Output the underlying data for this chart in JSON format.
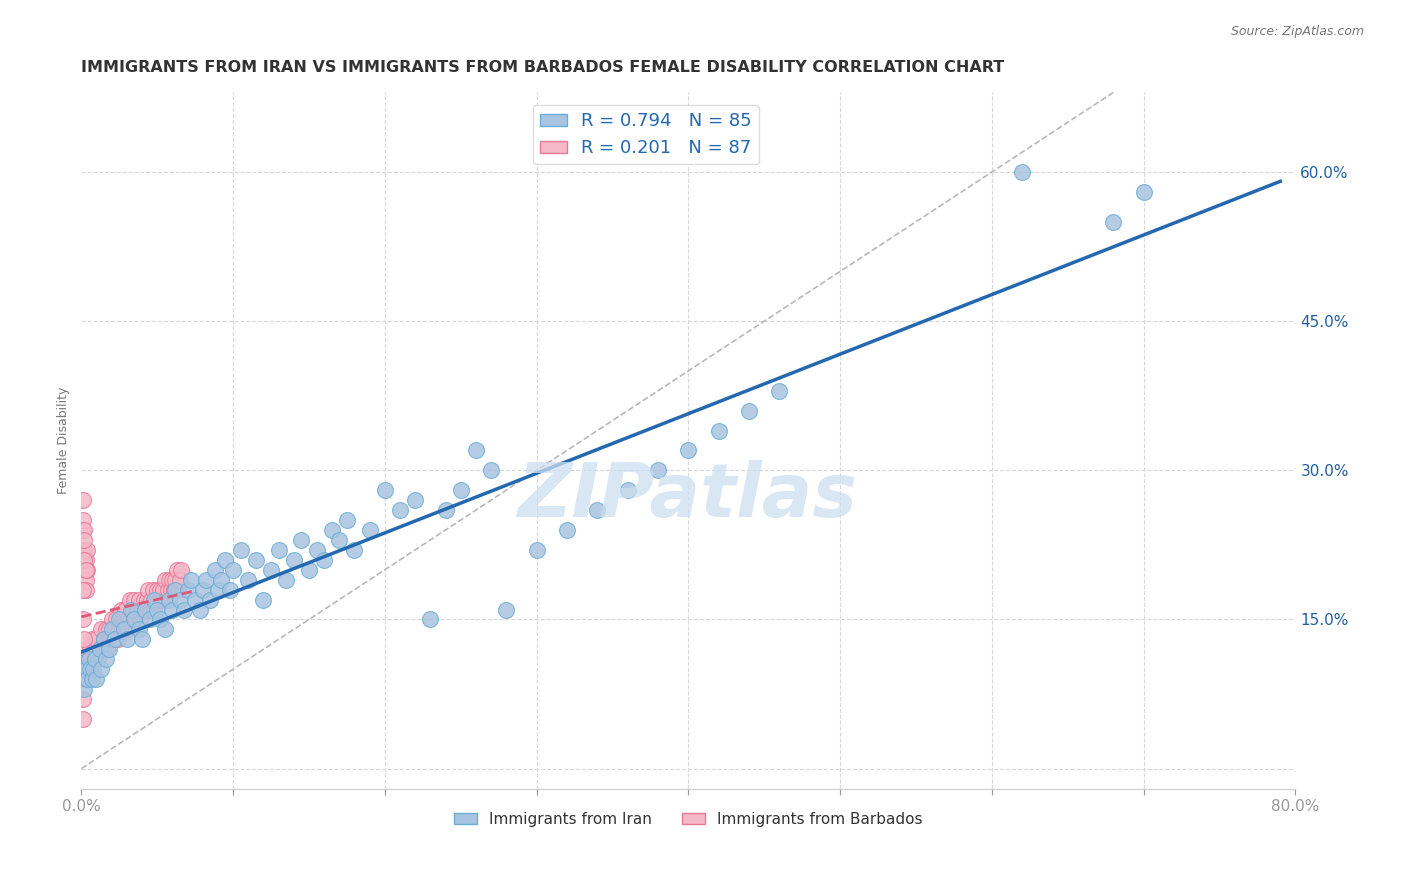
{
  "title": "IMMIGRANTS FROM IRAN VS IMMIGRANTS FROM BARBADOS FEMALE DISABILITY CORRELATION CHART",
  "source": "Source: ZipAtlas.com",
  "ylabel": "Female Disability",
  "xlim": [
    0,
    0.8
  ],
  "ylim": [
    -0.02,
    0.68
  ],
  "iran_color": "#a8c4e0",
  "iran_edge_color": "#6aaed6",
  "iran_line_color": "#2468b0",
  "barbados_color": "#f4b8c8",
  "barbados_edge_color": "#e87898",
  "barbados_line_color": "#e05878",
  "iran_R": 0.794,
  "iran_N": 85,
  "barbados_R": 0.201,
  "barbados_N": 87,
  "legend_R_color": "#2468b0",
  "watermark": "ZIPatlas",
  "iran_x": [
    0.002,
    0.003,
    0.004,
    0.005,
    0.006,
    0.007,
    0.008,
    0.009,
    0.01,
    0.012,
    0.013,
    0.015,
    0.016,
    0.018,
    0.02,
    0.022,
    0.025,
    0.028,
    0.03,
    0.033,
    0.035,
    0.038,
    0.04,
    0.042,
    0.045,
    0.048,
    0.05,
    0.052,
    0.055,
    0.058,
    0.06,
    0.062,
    0.065,
    0.068,
    0.07,
    0.072,
    0.075,
    0.078,
    0.08,
    0.082,
    0.085,
    0.088,
    0.09,
    0.092,
    0.095,
    0.098,
    0.1,
    0.105,
    0.11,
    0.115,
    0.12,
    0.125,
    0.13,
    0.135,
    0.14,
    0.145,
    0.15,
    0.155,
    0.16,
    0.165,
    0.17,
    0.175,
    0.18,
    0.19,
    0.2,
    0.21,
    0.22,
    0.23,
    0.24,
    0.25,
    0.26,
    0.27,
    0.28,
    0.3,
    0.32,
    0.34,
    0.36,
    0.38,
    0.4,
    0.42,
    0.44,
    0.46,
    0.62,
    0.68,
    0.7
  ],
  "iran_y": [
    0.08,
    0.1,
    0.09,
    0.11,
    0.1,
    0.09,
    0.1,
    0.11,
    0.09,
    0.12,
    0.1,
    0.13,
    0.11,
    0.12,
    0.14,
    0.13,
    0.15,
    0.14,
    0.13,
    0.16,
    0.15,
    0.14,
    0.13,
    0.16,
    0.15,
    0.17,
    0.16,
    0.15,
    0.14,
    0.17,
    0.16,
    0.18,
    0.17,
    0.16,
    0.18,
    0.19,
    0.17,
    0.16,
    0.18,
    0.19,
    0.17,
    0.2,
    0.18,
    0.19,
    0.21,
    0.18,
    0.2,
    0.22,
    0.19,
    0.21,
    0.17,
    0.2,
    0.22,
    0.19,
    0.21,
    0.23,
    0.2,
    0.22,
    0.21,
    0.24,
    0.23,
    0.25,
    0.22,
    0.24,
    0.28,
    0.26,
    0.27,
    0.15,
    0.26,
    0.28,
    0.32,
    0.3,
    0.16,
    0.22,
    0.24,
    0.26,
    0.28,
    0.3,
    0.32,
    0.34,
    0.36,
    0.38,
    0.6,
    0.55,
    0.58
  ],
  "barbados_x": [
    0.001,
    0.002,
    0.003,
    0.004,
    0.005,
    0.006,
    0.007,
    0.008,
    0.009,
    0.01,
    0.011,
    0.012,
    0.013,
    0.014,
    0.015,
    0.016,
    0.017,
    0.018,
    0.019,
    0.02,
    0.021,
    0.022,
    0.023,
    0.024,
    0.025,
    0.026,
    0.027,
    0.028,
    0.029,
    0.03,
    0.031,
    0.032,
    0.033,
    0.034,
    0.035,
    0.036,
    0.037,
    0.038,
    0.039,
    0.04,
    0.041,
    0.042,
    0.043,
    0.044,
    0.045,
    0.046,
    0.047,
    0.048,
    0.049,
    0.05,
    0.051,
    0.052,
    0.053,
    0.054,
    0.055,
    0.056,
    0.057,
    0.058,
    0.059,
    0.06,
    0.061,
    0.062,
    0.063,
    0.064,
    0.065,
    0.066,
    0.001,
    0.001,
    0.002,
    0.002,
    0.003,
    0.003,
    0.003,
    0.004,
    0.004,
    0.001,
    0.001,
    0.002,
    0.002,
    0.002,
    0.003,
    0.001,
    0.001,
    0.002,
    0.001,
    0.001,
    0.001
  ],
  "barbados_y": [
    0.1,
    0.11,
    0.12,
    0.1,
    0.11,
    0.12,
    0.13,
    0.11,
    0.12,
    0.13,
    0.11,
    0.12,
    0.14,
    0.12,
    0.13,
    0.14,
    0.12,
    0.14,
    0.13,
    0.15,
    0.13,
    0.14,
    0.15,
    0.13,
    0.14,
    0.16,
    0.14,
    0.15,
    0.16,
    0.14,
    0.15,
    0.17,
    0.15,
    0.16,
    0.17,
    0.15,
    0.16,
    0.17,
    0.15,
    0.16,
    0.17,
    0.16,
    0.17,
    0.18,
    0.16,
    0.17,
    0.18,
    0.16,
    0.17,
    0.18,
    0.17,
    0.18,
    0.17,
    0.18,
    0.19,
    0.17,
    0.18,
    0.19,
    0.18,
    0.19,
    0.18,
    0.19,
    0.2,
    0.18,
    0.19,
    0.2,
    0.22,
    0.24,
    0.22,
    0.2,
    0.19,
    0.21,
    0.18,
    0.2,
    0.22,
    0.25,
    0.27,
    0.24,
    0.23,
    0.21,
    0.2,
    0.18,
    0.15,
    0.13,
    0.09,
    0.07,
    0.05
  ]
}
